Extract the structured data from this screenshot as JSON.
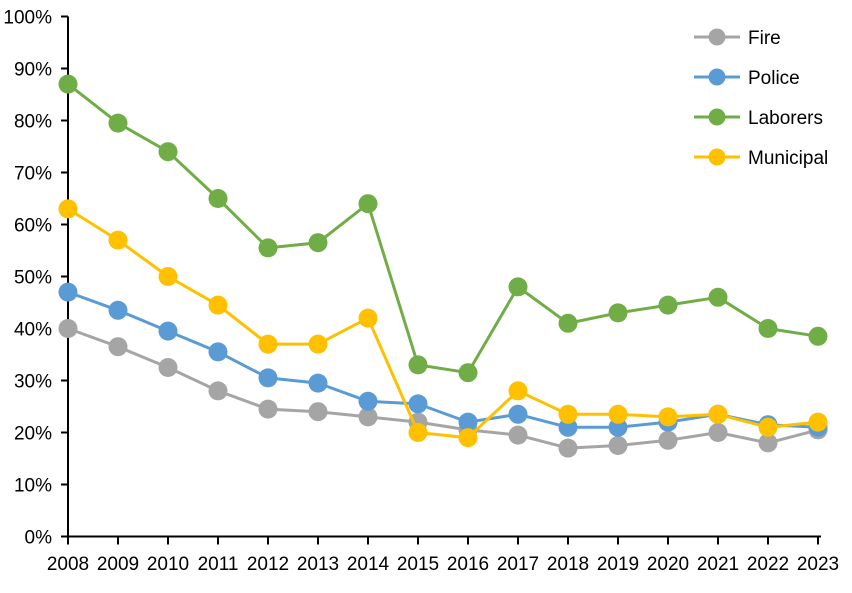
{
  "chart_data": {
    "type": "line",
    "title": "",
    "xlabel": "",
    "ylabel": "",
    "grid": false,
    "background_color": "#FFFFFF",
    "axis_color": "#000000",
    "text_color": "#000000",
    "x_categories": [
      "2008",
      "2009",
      "2010",
      "2011",
      "2012",
      "2013",
      "2014",
      "2015",
      "2016",
      "2017",
      "2018",
      "2019",
      "2020",
      "2021",
      "2022",
      "2023"
    ],
    "y_axis": {
      "min": 0,
      "max": 100,
      "tick_step": 10,
      "tick_labels": [
        "0%",
        "10%",
        "20%",
        "30%",
        "40%",
        "50%",
        "60%",
        "70%",
        "80%",
        "90%",
        "100%"
      ]
    },
    "legend": {
      "position": "top-right",
      "entries": [
        "Fire",
        "Police",
        "Laborers",
        "Municipal"
      ]
    },
    "series": [
      {
        "name": "Fire",
        "color": "#A5A5A5",
        "values": [
          40,
          36.5,
          32.5,
          28,
          24.5,
          24,
          23,
          22,
          20.5,
          19.5,
          17,
          17.5,
          18.5,
          20,
          18,
          20.5
        ]
      },
      {
        "name": "Police",
        "color": "#5B9BD5",
        "values": [
          47,
          43.5,
          39.5,
          35.5,
          30.5,
          29.5,
          26,
          25.5,
          22,
          23.5,
          21,
          21,
          22,
          23.5,
          21.5,
          21
        ]
      },
      {
        "name": "Laborers",
        "color": "#70AD47",
        "values": [
          87,
          79.5,
          74,
          65,
          55.5,
          56.5,
          64,
          33,
          31.5,
          48,
          41,
          43,
          44.5,
          46,
          40,
          38.5
        ]
      },
      {
        "name": "Municipal",
        "color": "#FFC000",
        "values": [
          63,
          57,
          50,
          44.5,
          37,
          37,
          42,
          20,
          19,
          28,
          23.5,
          23.5,
          23,
          23.5,
          21,
          22
        ]
      }
    ]
  }
}
